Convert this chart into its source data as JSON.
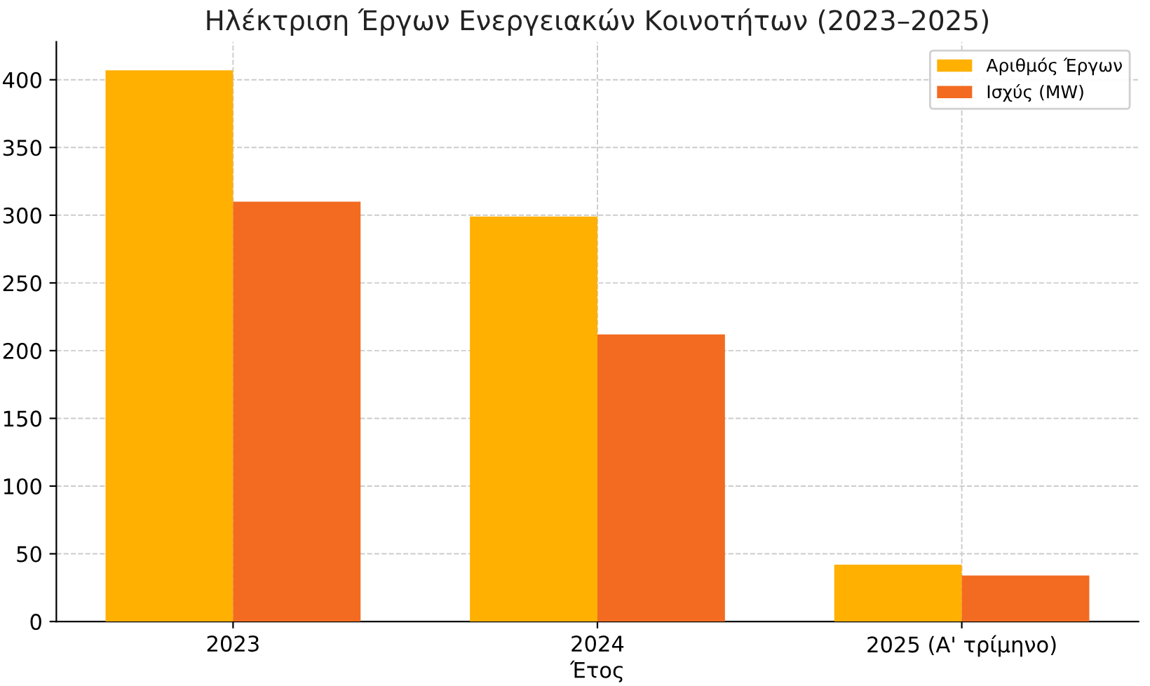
{
  "chart_data": {
    "type": "bar",
    "title": "Ηλέκτριση Έργων Ενεργειακών Κοινοτήτων (2023–2025)",
    "xlabel": "Έτος",
    "categories": [
      "2023",
      "2024",
      "2025 (Α' τρίμηνο)"
    ],
    "series": [
      {
        "name": "Αριθμός Έργων",
        "color": "#ffb000",
        "values": [
          407,
          299,
          42
        ]
      },
      {
        "name": "Ισχύς (MW)",
        "color": "#f26b21",
        "values": [
          310,
          212,
          34
        ]
      }
    ],
    "ylim": [
      0,
      428
    ],
    "yticks": [
      0,
      50,
      100,
      150,
      200,
      250,
      300,
      350,
      400
    ],
    "grid": true,
    "legend": "top right"
  }
}
